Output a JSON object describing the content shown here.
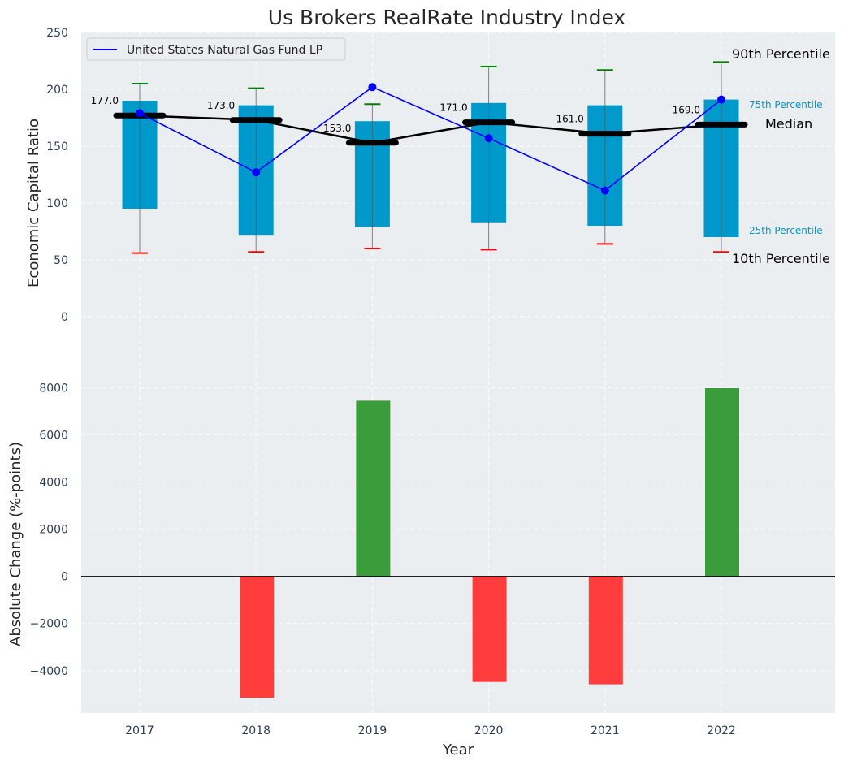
{
  "chart_data": [
    {
      "type": "box",
      "title": "Us Brokers RealRate Industry Index",
      "ylabel": "Economic Capital Ratio",
      "ylim": [
        -50,
        250
      ],
      "yticks": [
        "0",
        "50",
        "100",
        "150",
        "200",
        "250"
      ],
      "categories": [
        "2017",
        "2018",
        "2019",
        "2020",
        "2021",
        "2022"
      ],
      "p10": [
        56,
        57,
        60,
        59,
        64,
        57
      ],
      "p25": [
        95,
        72,
        79,
        83,
        80,
        70
      ],
      "median": [
        177.0,
        173.0,
        153.0,
        171.0,
        161.0,
        169.0
      ],
      "p75": [
        190,
        186,
        172,
        188,
        186,
        191
      ],
      "p90": [
        205,
        201,
        187,
        220,
        217,
        224
      ],
      "median_labels": [
        "177.0",
        "173.0",
        "153.0",
        "171.0",
        "161.0",
        "169.0"
      ],
      "series": [
        {
          "name": "United States Natural Gas Fund LP",
          "values": [
            179,
            127,
            202,
            157,
            111,
            191
          ]
        }
      ],
      "percentile_labels": {
        "p90": "90th Percentile",
        "p75": "75th Percentile",
        "median": "Median",
        "p25": "25th Percentile",
        "p10": "10th Percentile"
      },
      "legend_position": "top-left"
    },
    {
      "type": "bar",
      "ylabel": "Absolute Change (%-points)",
      "xlabel": "Year",
      "ylim": [
        -5800,
        8600
      ],
      "yticks": [
        "−4000",
        "−2000",
        "0",
        "2000",
        "4000",
        "6000",
        "8000"
      ],
      "categories": [
        "2017",
        "2018",
        "2019",
        "2020",
        "2021",
        "2022"
      ],
      "values": [
        0,
        -5150,
        7450,
        -4480,
        -4580,
        7980
      ]
    }
  ],
  "colors": {
    "panel_bg": "#eaeef0",
    "box_fill": "#0099cc",
    "median_line": "#000000",
    "series_line": "#0000ff",
    "p90_cap": "#008000",
    "p10_cap": "#ff0000",
    "positive_bar": "#3a9c3a",
    "negative_bar": "#ff3d3d"
  }
}
